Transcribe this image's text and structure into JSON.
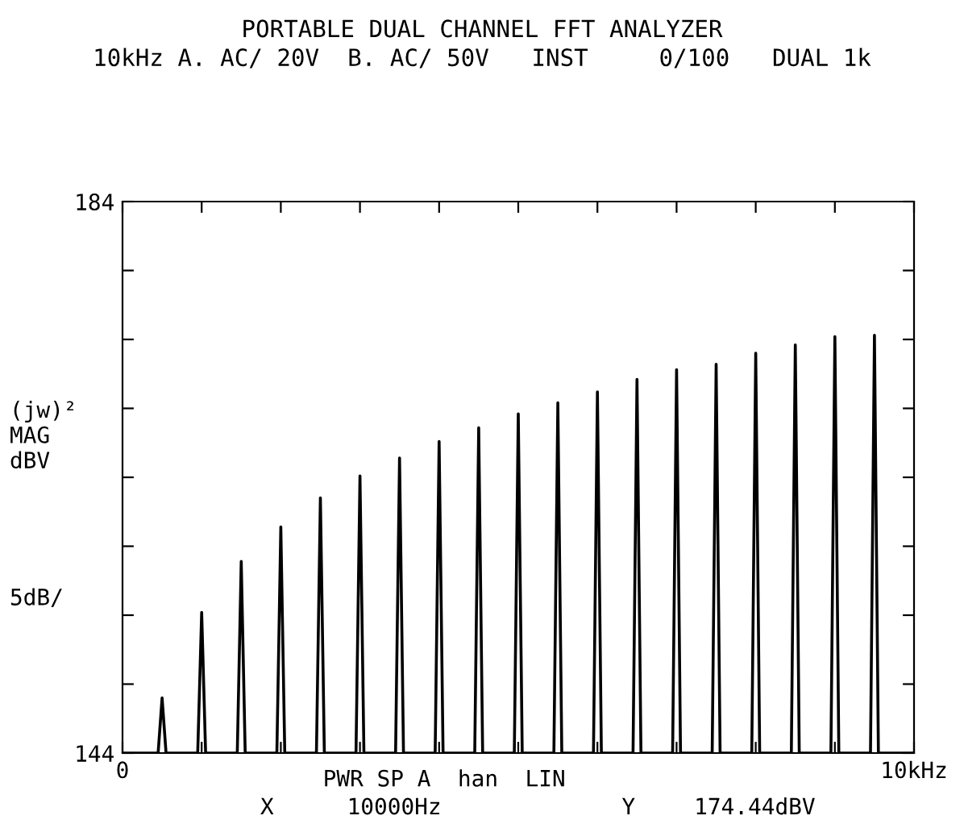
{
  "chart_data": {
    "type": "line",
    "title": "PORTABLE DUAL CHANNEL FFT ANALYZER",
    "subtitle": "10kHz A. AC/ 20V  B. AC/ 50V   INST     0/100   DUAL 1k",
    "ylabel": "(jw)²\nMAG\ndBV",
    "annotations": [
      "5dB/",
      "PWR SP A  han  LIN",
      "X",
      "10000Hz",
      "Y",
      "174.44dBV"
    ],
    "xlim": [
      0,
      10
    ],
    "ylim": [
      144,
      184
    ],
    "xticks": [
      0,
      {
        "value": 1,
        "label": null
      },
      {
        "value": 2,
        "label": null
      },
      {
        "value": 3,
        "label": null
      },
      {
        "value": 4,
        "label": null
      },
      {
        "value": 5,
        "label": null
      },
      {
        "value": 6,
        "label": null
      },
      {
        "value": 7,
        "label": null
      },
      {
        "value": 8,
        "label": null
      },
      {
        "value": 9,
        "label": null
      },
      {
        "value": 10,
        "label": "10kHz"
      }
    ],
    "yticks": [
      144,
      {
        "value": 149,
        "label": null
      },
      {
        "value": 154,
        "label": null
      },
      {
        "value": 159,
        "label": null
      },
      {
        "value": 164,
        "label": null
      },
      {
        "value": 169,
        "label": null
      },
      {
        "value": 174,
        "label": null
      },
      {
        "value": 179,
        "label": null
      },
      184
    ],
    "grid": false,
    "legend": false,
    "marker": "none",
    "line_style": "solid",
    "series": [
      {
        "color": "#000000",
        "x": [
          0,
          0.45,
          0.5,
          0.55,
          0.95,
          1.0,
          1.05,
          1.45,
          1.5,
          1.55,
          1.95,
          2.0,
          2.05,
          2.45,
          2.5,
          2.55,
          2.95,
          3.0,
          3.05,
          3.45,
          3.5,
          3.55,
          3.95,
          4.0,
          4.05,
          4.45,
          4.5,
          4.55,
          4.95,
          5.0,
          5.05,
          5.45,
          5.5,
          5.55,
          5.95,
          6.0,
          6.05,
          6.45,
          6.5,
          6.55,
          6.95,
          7.0,
          7.05,
          7.45,
          7.5,
          7.55,
          7.95,
          8.0,
          8.05,
          8.45,
          8.5,
          8.55,
          8.95,
          9.0,
          9.05,
          9.45,
          9.5,
          9.55,
          10
        ],
        "values": [
          144,
          144,
          148.0,
          144,
          144,
          154.2,
          144,
          144,
          157.9,
          144,
          144,
          160.4,
          144,
          144,
          162.5,
          144,
          144,
          164.1,
          144,
          144,
          165.4,
          144,
          144,
          166.6,
          144,
          144,
          167.6,
          144,
          144,
          168.6,
          144,
          144,
          169.4,
          144,
          144,
          170.2,
          144,
          144,
          171.1,
          144,
          144,
          171.8,
          144,
          144,
          172.2,
          144,
          144,
          173.0,
          144,
          144,
          173.6,
          144,
          144,
          174.2,
          144,
          144,
          174.3,
          144,
          144
        ]
      }
    ]
  }
}
